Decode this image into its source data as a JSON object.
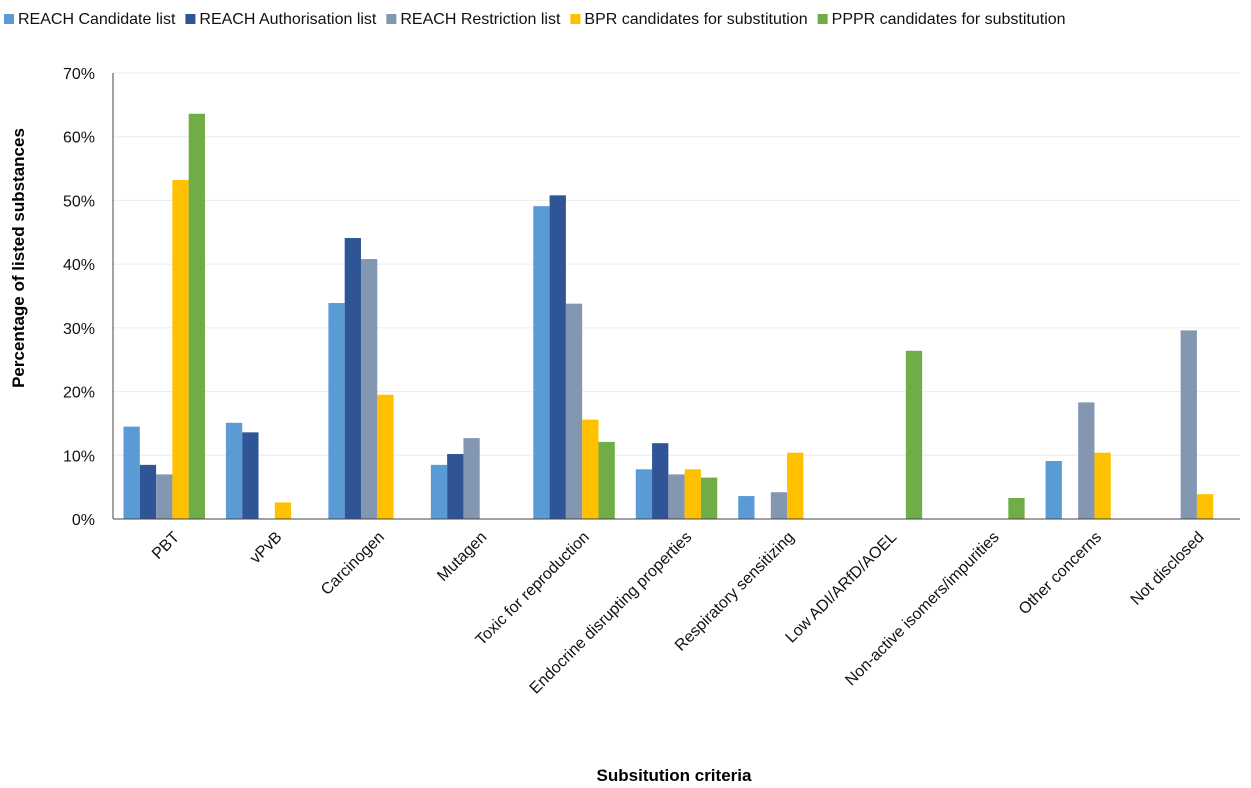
{
  "chart_data": {
    "type": "bar",
    "title": "",
    "xlabel": "Subsitution criteria",
    "ylabel": "Percentage of listed substances",
    "ylim": [
      0,
      70
    ],
    "ytick_step": 10,
    "ytick_suffix": "%",
    "grid": true,
    "legend_position": "top",
    "categories": [
      "PBT",
      "vPvB",
      "Carcinogen",
      "Mutagen",
      "Toxic for reproduction",
      "Endocrine disrupting properties",
      "Respiratory sensitizing",
      "Low ADI/ARfD/AOEL",
      "Non-active isomers/impurities",
      "Other concerns",
      "Not disclosed"
    ],
    "series": [
      {
        "name": "REACH Candidate list",
        "color": "#5b9bd5",
        "values": [
          14.5,
          15.1,
          33.9,
          8.5,
          49.1,
          7.8,
          3.6,
          0,
          0,
          9.1,
          0
        ]
      },
      {
        "name": "REACH Authorisation list",
        "color": "#2f5597",
        "values": [
          8.5,
          13.6,
          44.1,
          10.2,
          50.8,
          11.9,
          0,
          0,
          0,
          0,
          0
        ]
      },
      {
        "name": "REACH Restriction list",
        "color": "#8497b0",
        "values": [
          7.0,
          0,
          40.8,
          12.7,
          33.8,
          7.0,
          4.2,
          0,
          0,
          18.3,
          29.6
        ]
      },
      {
        "name": "BPR candidates for substitution",
        "color": "#ffc000",
        "values": [
          53.2,
          2.6,
          19.5,
          0,
          15.6,
          7.8,
          10.4,
          0,
          0,
          10.4,
          3.9
        ]
      },
      {
        "name": "PPPR candidates for substitution",
        "color": "#70ad47",
        "values": [
          63.6,
          0,
          0,
          0,
          12.1,
          6.5,
          0,
          26.4,
          3.3,
          0,
          0
        ]
      }
    ]
  }
}
